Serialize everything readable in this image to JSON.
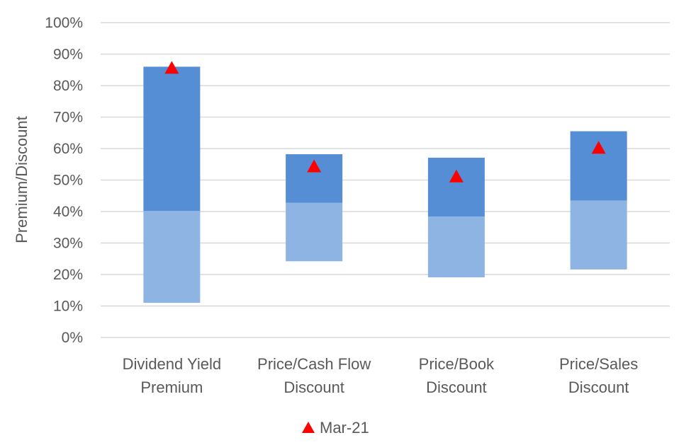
{
  "chart_data": {
    "type": "bar",
    "subtype": "stacked-floating-range",
    "categories": [
      [
        "Dividend Yield",
        "Premium"
      ],
      [
        "Price/Cash Flow",
        "Discount"
      ],
      [
        "Price/Book",
        "Discount"
      ],
      [
        "Price/Sales",
        "Discount"
      ]
    ],
    "series": [
      {
        "role": "lower-range",
        "color": "#8eb4e3",
        "low": [
          11.0,
          24.2,
          19.1,
          21.6
        ],
        "high": [
          40.2,
          42.8,
          38.4,
          43.5
        ]
      },
      {
        "role": "upper-range",
        "color": "#558ed5",
        "low": [
          40.2,
          42.8,
          38.4,
          43.5
        ],
        "high": [
          86.0,
          58.2,
          57.1,
          65.5
        ]
      },
      {
        "name": "Mar-21",
        "type": "marker",
        "marker": "triangle",
        "color": "#ff0000",
        "values": [
          85.8,
          54.5,
          51.3,
          60.4
        ]
      }
    ],
    "ylabel": "Premium/Discount",
    "ylim": [
      0,
      100
    ],
    "yticks": [
      "0%",
      "10%",
      "20%",
      "30%",
      "40%",
      "50%",
      "60%",
      "70%",
      "80%",
      "90%",
      "100%"
    ],
    "grid": true,
    "legend_position": "bottom",
    "legend": [
      {
        "label": "Mar-21",
        "icon": "triangle-icon"
      }
    ]
  }
}
